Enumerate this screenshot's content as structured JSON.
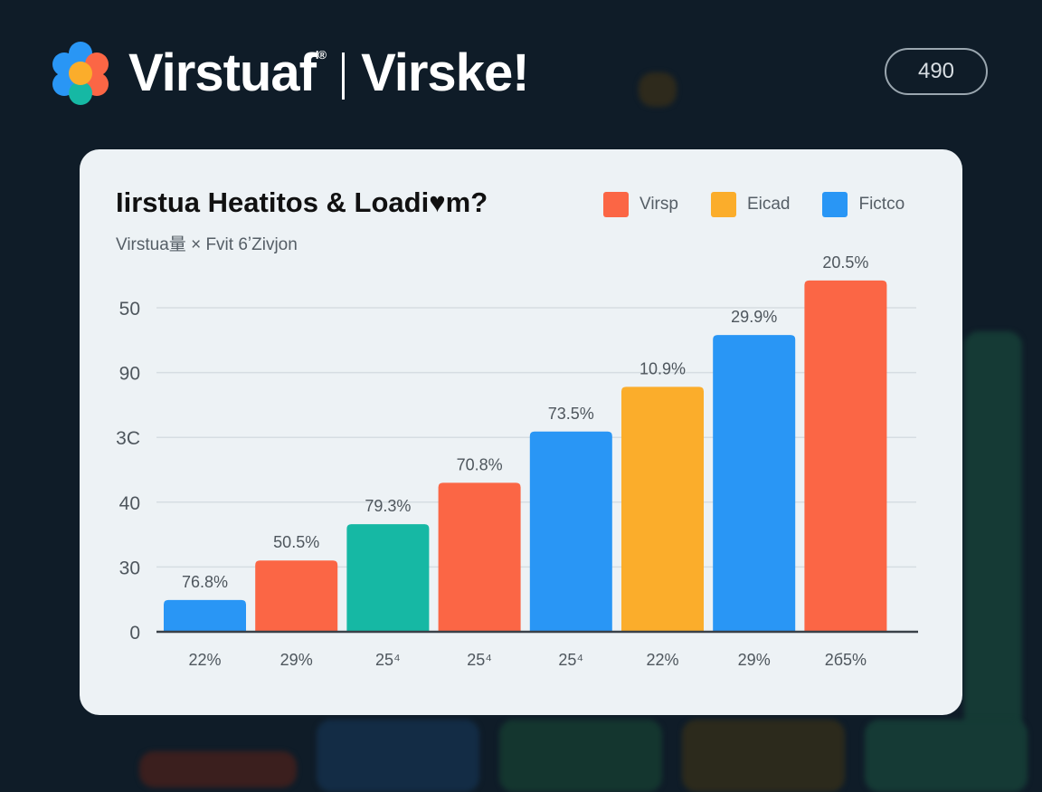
{
  "header": {
    "brand": "Virstuaf",
    "brand_mark": "I®",
    "product": "Virske!",
    "pill_value": "490"
  },
  "colors": {
    "red": "#fb6645",
    "orange": "#fbad2b",
    "blue": "#2996f5",
    "teal": "#16b8a4",
    "background": "#0f1c28",
    "card": "#edf2f5"
  },
  "chart_data": {
    "type": "bar",
    "title": "Iirstua Heatitos & Loadi♥m?",
    "subtitle": "Virstua量 × Fvit 6ʼZivjon",
    "legend": [
      {
        "label": "Virsp",
        "color": "#fb6645"
      },
      {
        "label": "Eicad",
        "color": "#fbad2b"
      },
      {
        "label": "Fictco",
        "color": "#2996f5"
      }
    ],
    "legend_position": "top-right",
    "y_ticks": [
      {
        "value": 0,
        "label": "0"
      },
      {
        "value": 1,
        "label": "30"
      },
      {
        "value": 2,
        "label": "40"
      },
      {
        "value": 3,
        "label": "3C"
      },
      {
        "value": 4,
        "label": "90"
      },
      {
        "value": 5,
        "label": "50"
      }
    ],
    "ylim": [
      0,
      5.6
    ],
    "grid": true,
    "categories": [
      "22%",
      "29%",
      "25⁴",
      "25⁴",
      "25⁴",
      "22%",
      "29%",
      "2б5%"
    ],
    "values": [
      0.49,
      1.1,
      1.66,
      2.3,
      3.09,
      3.78,
      4.58,
      5.42
    ],
    "data_labels": [
      "76.8%",
      "50.5%",
      "79.3%",
      "70.8%",
      "73.5%",
      "10.9%",
      "29.9%",
      "20.5%"
    ],
    "bar_colors": [
      "#2996f5",
      "#fb6645",
      "#16b8a4",
      "#fb6645",
      "#2996f5",
      "#fbad2b",
      "#2996f5",
      "#fb6645"
    ]
  }
}
